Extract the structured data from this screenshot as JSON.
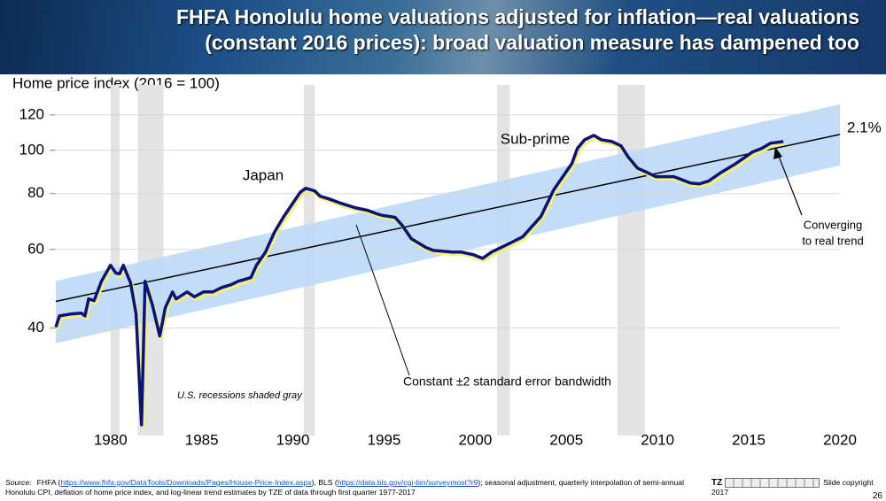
{
  "header": {
    "title_lines": [
      "FHFA Honolulu home valuations adjusted for inflation—real valuations",
      "(constant 2016 prices):  broad valuation measure has dampened too"
    ]
  },
  "chart_data": {
    "type": "line",
    "y_label": "Home price index (2016 = 100)",
    "log_y": true,
    "xlim": [
      1977,
      2020
    ],
    "xticks": [
      1980,
      1985,
      1990,
      1995,
      2000,
      2005,
      2010,
      2015,
      2020
    ],
    "ylim": [
      23,
      140
    ],
    "yticks": [
      40,
      60,
      80,
      100,
      120
    ],
    "grid": true,
    "recessions": [
      [
        1980.0,
        1980.5
      ],
      [
        1981.5,
        1982.9
      ],
      [
        1990.6,
        1991.2
      ],
      [
        2001.2,
        2001.9
      ],
      [
        2007.8,
        2009.3
      ]
    ],
    "band": {
      "color": "#bcd8f7",
      "x": [
        1977,
        2020
      ],
      "upper": [
        51,
        126.7
      ],
      "lower": [
        37,
        92.5
      ]
    },
    "trend": {
      "color": "#000000",
      "x": [
        1977,
        2020
      ],
      "values": [
        45.9,
        108.5
      ]
    },
    "series": [
      {
        "name": "Home price index",
        "color": "#0a1478",
        "shadow_color": "#f4f070",
        "x": [
          1977.0,
          1977.2,
          1977.8,
          1978.4,
          1978.6,
          1978.8,
          1979.1,
          1979.5,
          1980.0,
          1980.3,
          1980.5,
          1980.7,
          1981.1,
          1981.4,
          1981.7,
          1981.9,
          1982.3,
          1982.7,
          1983.0,
          1983.4,
          1983.6,
          1984.2,
          1984.6,
          1985.1,
          1985.6,
          1986.1,
          1986.6,
          1987.0,
          1987.7,
          1988.0,
          1988.5,
          1989.0,
          1989.5,
          1990.0,
          1990.4,
          1990.7,
          1991.2,
          1991.5,
          1992.0,
          1992.6,
          1993.4,
          1994.1,
          1994.6,
          1994.9,
          1995.6,
          1996.0,
          1996.5,
          1997.3,
          1997.7,
          1998.7,
          1999.2,
          1999.9,
          2000.4,
          2000.9,
          2001.6,
          2002.6,
          2003.6,
          2004.3,
          2004.8,
          2005.3,
          2005.6,
          2006.0,
          2006.5,
          2006.9,
          2007.5,
          2008.0,
          2008.4,
          2008.9,
          2009.4,
          2009.9,
          2010.9,
          2011.8,
          2012.3,
          2012.8,
          2013.5,
          2014.3,
          2015.2,
          2015.7,
          2016.2,
          2016.9
        ],
        "values": [
          40.2,
          42.6,
          43.0,
          43.2,
          42.6,
          46.5,
          46.1,
          50.9,
          55.3,
          53.1,
          52.9,
          55.3,
          50.5,
          43.0,
          24.3,
          50.9,
          45.0,
          38.4,
          44.4,
          48.2,
          46.5,
          48.2,
          47.0,
          48.2,
          48.2,
          49.3,
          50.0,
          50.9,
          51.9,
          55.3,
          59.2,
          65.7,
          71.1,
          76.2,
          80.5,
          82.2,
          81.1,
          78.9,
          77.8,
          76.2,
          74.4,
          73.4,
          72.1,
          71.5,
          70.8,
          67.9,
          63.4,
          60.6,
          59.7,
          59.2,
          59.2,
          58.4,
          57.3,
          59.2,
          61.1,
          64.0,
          71.1,
          81.5,
          87.3,
          93.4,
          100.9,
          105.6,
          108.0,
          105.6,
          104.6,
          102.3,
          96.4,
          91.2,
          89.3,
          87.3,
          87.3,
          84.5,
          84.1,
          85.3,
          89.3,
          93.4,
          99.1,
          100.9,
          103.7,
          104.6
        ]
      }
    ],
    "annotations": {
      "japan": "Japan",
      "subprime": "Sub-prime",
      "trend_rate": "2.1%",
      "converging": [
        "Converging",
        "to real trend"
      ],
      "bandwidth": "Constant ±2 standard error bandwidth",
      "recessions": "U.S. recessions shaded gray"
    }
  },
  "footer": {
    "label": "Source:",
    "t1": "FHFA (",
    "link1": "https://www.fhfa.gov/DataTools/Downloads/Pages/House-Price-Index.aspx",
    "t2": "), BLS (",
    "link2": "https://data.bls.gov/cgi-bin/surveymost?r9",
    "t3": "); seasonal adjustment, quarterly interpolation of semi-annual Honolulu CPI, deflation of home price index, and log-linear trend estimates by TZE of data through first quarter 1977-2017",
    "logo": "TZ",
    "copyright": "Slide copyright 2017",
    "page": "26"
  }
}
